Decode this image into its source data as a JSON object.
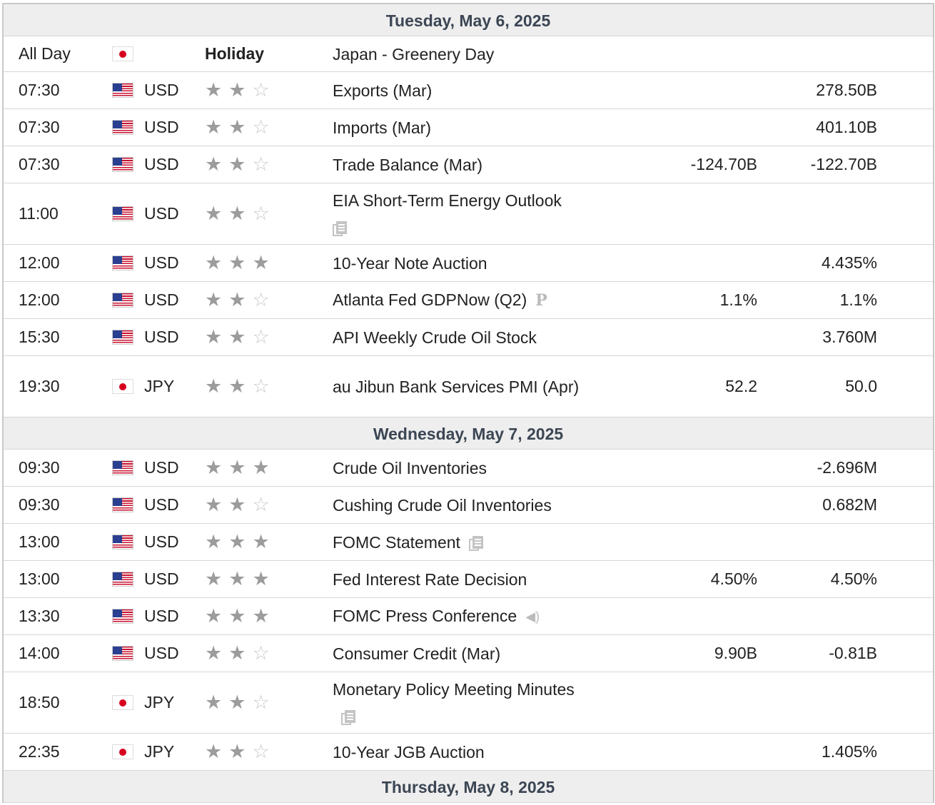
{
  "days": [
    {
      "date": "Tuesday, May 6, 2025",
      "events": [
        {
          "time": "All Day",
          "flag": "jp",
          "currency": "",
          "importance": null,
          "holiday_label": "Holiday",
          "event": "Japan - Greenery Day",
          "icon": null,
          "forecast": "",
          "previous": ""
        },
        {
          "time": "07:30",
          "flag": "us",
          "currency": "USD",
          "importance": 2,
          "event": "Exports (Mar)",
          "icon": null,
          "forecast": "",
          "previous": "278.50B"
        },
        {
          "time": "07:30",
          "flag": "us",
          "currency": "USD",
          "importance": 2,
          "event": "Imports (Mar)",
          "icon": null,
          "forecast": "",
          "previous": "401.10B"
        },
        {
          "time": "07:30",
          "flag": "us",
          "currency": "USD",
          "importance": 2,
          "event": "Trade Balance (Mar)",
          "icon": null,
          "forecast": "-124.70B",
          "previous": "-122.70B"
        },
        {
          "time": "11:00",
          "flag": "us",
          "currency": "USD",
          "importance": 2,
          "event": "EIA Short-Term Energy Outlook",
          "icon": "document",
          "icon_newline": true,
          "forecast": "",
          "previous": ""
        },
        {
          "time": "12:00",
          "flag": "us",
          "currency": "USD",
          "importance": 3,
          "event": "10-Year Note Auction",
          "icon": null,
          "forecast": "",
          "previous": "4.435%"
        },
        {
          "time": "12:00",
          "flag": "us",
          "currency": "USD",
          "importance": 2,
          "event": "Atlanta Fed GDPNow (Q2)",
          "icon": "preliminary",
          "forecast": "1.1%",
          "previous": "1.1%"
        },
        {
          "time": "15:30",
          "flag": "us",
          "currency": "USD",
          "importance": 2,
          "event": "API Weekly Crude Oil Stock",
          "icon": null,
          "forecast": "",
          "previous": "3.760M"
        },
        {
          "time": "19:30",
          "flag": "jp",
          "currency": "JPY",
          "importance": 2,
          "event": "au Jibun Bank Services PMI (Apr)",
          "icon": null,
          "forecast": "52.2",
          "previous": "50.0"
        }
      ]
    },
    {
      "date": "Wednesday, May 7, 2025",
      "events": [
        {
          "time": "09:30",
          "flag": "us",
          "currency": "USD",
          "importance": 3,
          "event": "Crude Oil Inventories",
          "icon": null,
          "forecast": "",
          "previous": "-2.696M"
        },
        {
          "time": "09:30",
          "flag": "us",
          "currency": "USD",
          "importance": 2,
          "event": "Cushing Crude Oil Inventories",
          "icon": null,
          "forecast": "",
          "previous": "0.682M"
        },
        {
          "time": "13:00",
          "flag": "us",
          "currency": "USD",
          "importance": 3,
          "event": "FOMC Statement",
          "icon": "document",
          "forecast": "",
          "previous": ""
        },
        {
          "time": "13:00",
          "flag": "us",
          "currency": "USD",
          "importance": 3,
          "event": "Fed Interest Rate Decision",
          "icon": null,
          "forecast": "4.50%",
          "previous": "4.50%"
        },
        {
          "time": "13:30",
          "flag": "us",
          "currency": "USD",
          "importance": 3,
          "event": "FOMC Press Conference",
          "icon": "speaker",
          "forecast": "",
          "previous": ""
        },
        {
          "time": "14:00",
          "flag": "us",
          "currency": "USD",
          "importance": 2,
          "event": "Consumer Credit (Mar)",
          "icon": null,
          "forecast": "9.90B",
          "previous": "-0.81B"
        },
        {
          "time": "18:50",
          "flag": "jp",
          "currency": "JPY",
          "importance": 2,
          "event": "Monetary Policy Meeting Minutes",
          "icon": "document",
          "forecast": "",
          "previous": ""
        },
        {
          "time": "22:35",
          "flag": "jp",
          "currency": "JPY",
          "importance": 2,
          "event": "10-Year JGB Auction",
          "icon": null,
          "forecast": "",
          "previous": "1.405%"
        }
      ]
    },
    {
      "date": "Thursday, May 8, 2025",
      "events": []
    }
  ]
}
